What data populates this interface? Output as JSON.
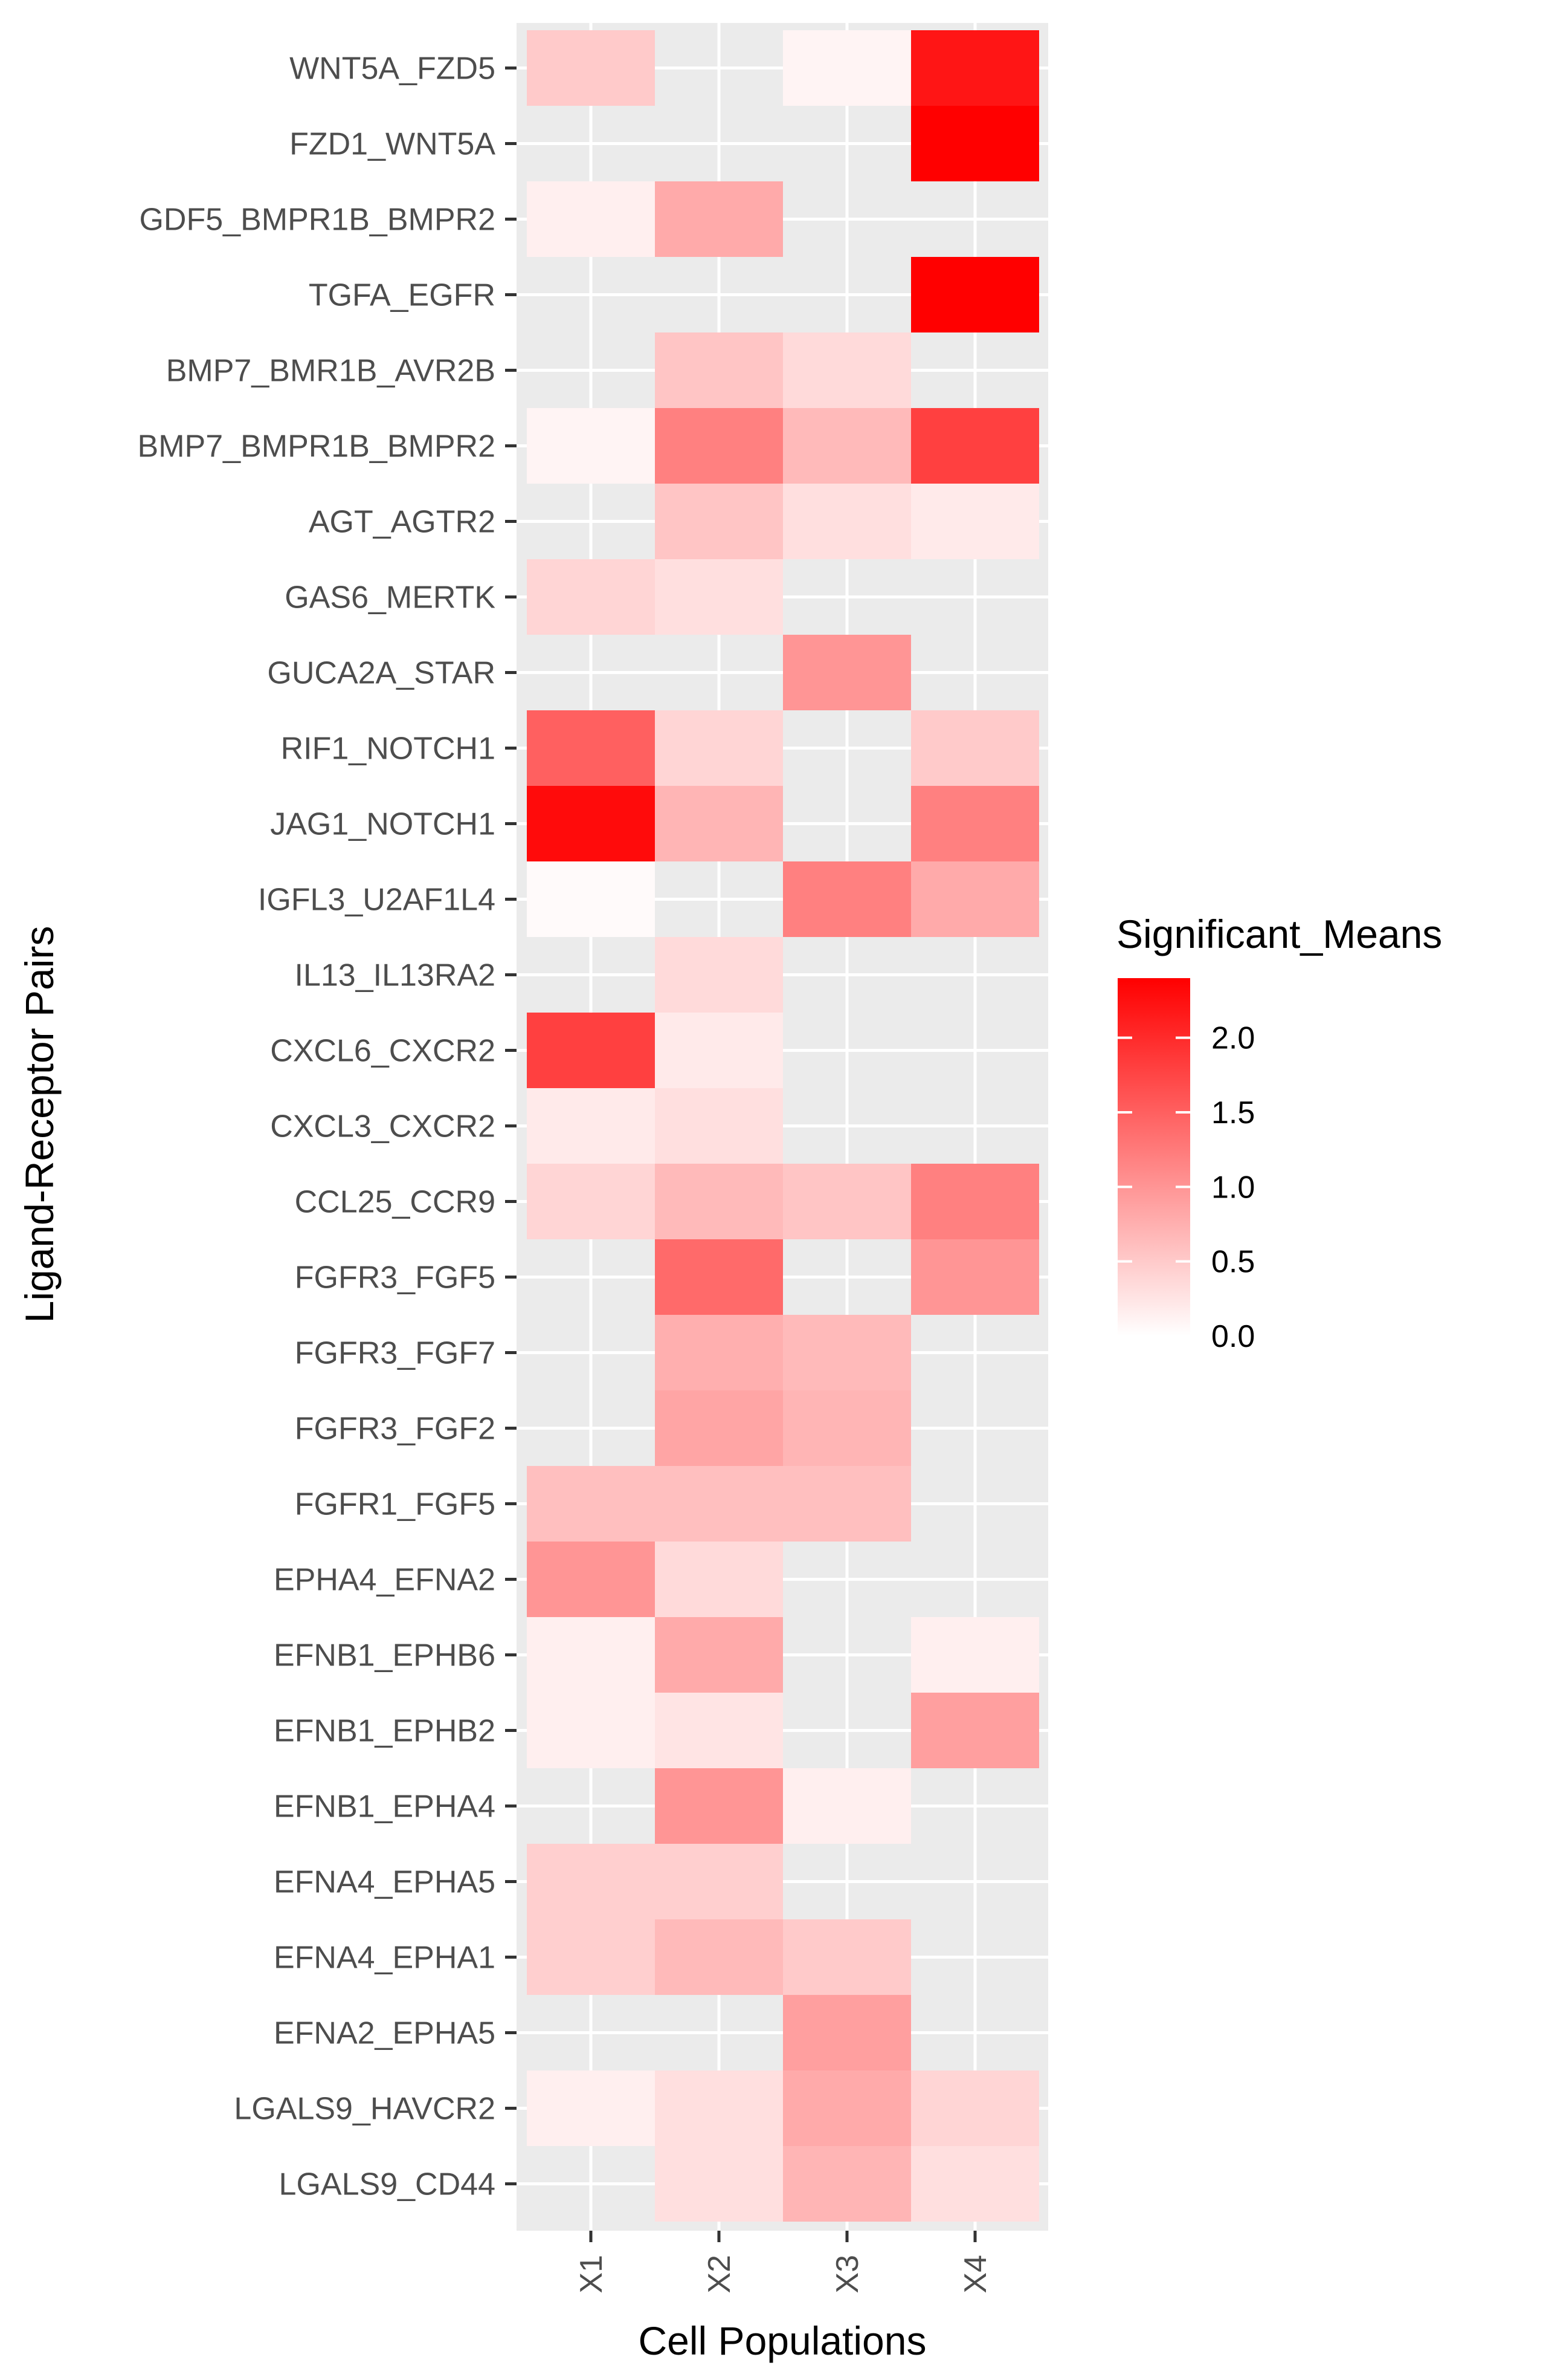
{
  "chart_data": {
    "type": "heatmap",
    "title": "",
    "xlabel": "Cell Populations",
    "ylabel": "Ligand-Receptor Pairs",
    "x_categories": [
      "X1",
      "X2",
      "X3",
      "X4"
    ],
    "y_categories": [
      "WNT5A_FZD5",
      "FZD1_WNT5A",
      "GDF5_BMPR1B_BMPR2",
      "TGFA_EGFR",
      "BMP7_BMR1B_AVR2B",
      "BMP7_BMPR1B_BMPR2",
      "AGT_AGTR2",
      "GAS6_MERTK",
      "GUCA2A_STAR",
      "RIF1_NOTCH1",
      "JAG1_NOTCH1",
      "IGFL3_U2AF1L4",
      "IL13_IL13RA2",
      "CXCL6_CXCR2",
      "CXCL3_CXCR2",
      "CCL25_CCR9",
      "FGFR3_FGF5",
      "FGFR3_FGF7",
      "FGFR3_FGF2",
      "FGFR1_FGF5",
      "EPHA4_EFNA2",
      "EFNB1_EPHB6",
      "EFNB1_EPHB2",
      "EFNB1_EPHA4",
      "EFNA4_EPHA5",
      "EFNA4_EPHA1",
      "EFNA2_EPHA5",
      "LGALS9_HAVCR2",
      "LGALS9_CD44"
    ],
    "values": [
      [
        0.5,
        null,
        0.1,
        2.2
      ],
      [
        null,
        null,
        null,
        2.4
      ],
      [
        0.15,
        0.8,
        null,
        null
      ],
      [
        null,
        null,
        null,
        2.4
      ],
      [
        null,
        0.55,
        0.35,
        null
      ],
      [
        0.1,
        1.2,
        0.65,
        1.8
      ],
      [
        null,
        0.55,
        0.3,
        0.2
      ],
      [
        0.4,
        0.3,
        null,
        null
      ],
      [
        null,
        null,
        1.0,
        null
      ],
      [
        1.5,
        0.4,
        null,
        0.5
      ],
      [
        2.3,
        0.7,
        null,
        1.2
      ],
      [
        0.05,
        null,
        1.2,
        0.8
      ],
      [
        null,
        0.35,
        null,
        null
      ],
      [
        1.8,
        0.2,
        null,
        null
      ],
      [
        0.2,
        0.3,
        null,
        null
      ],
      [
        0.4,
        0.65,
        0.55,
        1.2
      ],
      [
        null,
        1.4,
        null,
        1.0
      ],
      [
        null,
        0.75,
        0.65,
        null
      ],
      [
        null,
        0.85,
        0.7,
        null
      ],
      [
        0.6,
        0.6,
        0.6,
        null
      ],
      [
        1.0,
        0.35,
        null,
        null
      ],
      [
        0.15,
        0.8,
        null,
        0.15
      ],
      [
        0.15,
        0.25,
        null,
        0.9
      ],
      [
        null,
        1.0,
        0.15,
        null
      ],
      [
        0.45,
        0.45,
        null,
        null
      ],
      [
        0.45,
        0.65,
        0.5,
        null
      ],
      [
        null,
        null,
        0.9,
        null
      ],
      [
        0.15,
        0.3,
        0.8,
        0.4
      ],
      [
        null,
        0.3,
        0.7,
        0.3
      ]
    ],
    "legend": {
      "title": "Significant_Means",
      "min": 0.0,
      "max": 2.4,
      "ticks": [
        0.0,
        0.5,
        1.0,
        1.5,
        2.0
      ],
      "tick_labels": [
        "0.0",
        "0.5",
        "1.0",
        "1.5",
        "2.0"
      ],
      "low_color": "#ffffff",
      "high_color": "#ff0000",
      "placement": "right"
    },
    "panel_background": "#ebebeb",
    "grid": true
  }
}
